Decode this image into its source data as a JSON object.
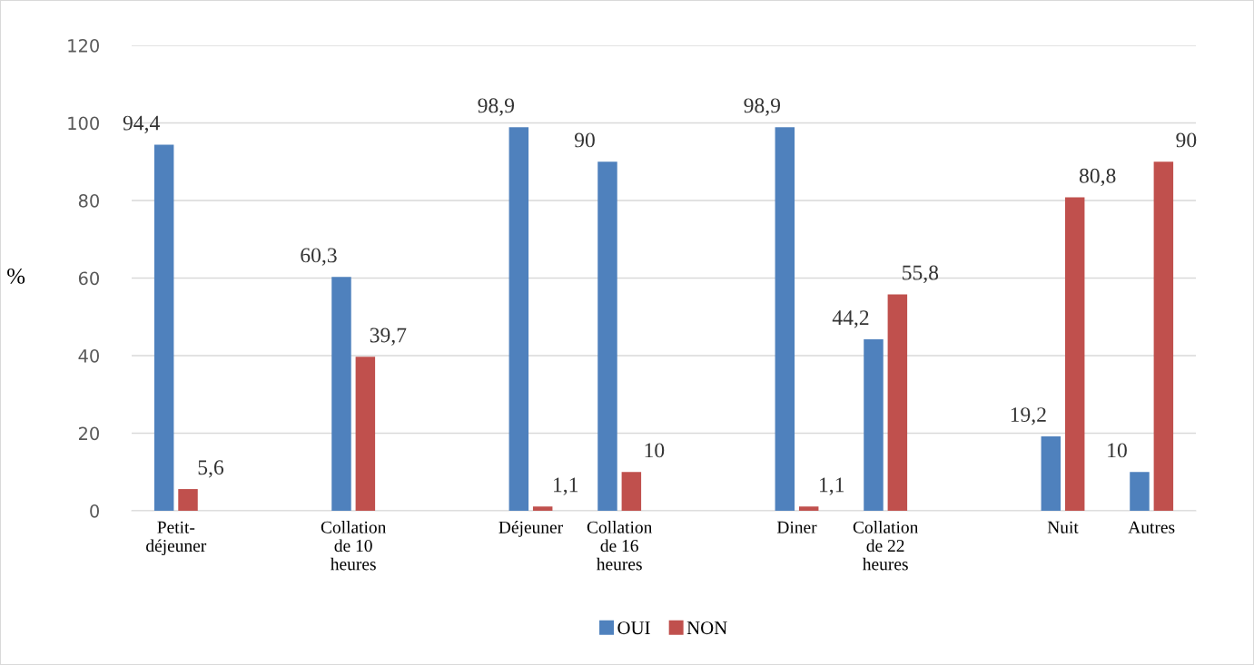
{
  "chart_data": {
    "type": "bar",
    "ylabel": "%",
    "categories": [
      "Petit-\ndéjeuner",
      null,
      "Collation\nde 10\nheures",
      null,
      "Déjeuner",
      "Collation\nde 16\nheures",
      null,
      "Diner",
      "Collation\nde 22\nheures",
      null,
      "Nuit",
      "Autres"
    ],
    "series": [
      {
        "name": "OUI",
        "color": "#4f81bd",
        "values": [
          94.4,
          null,
          60.3,
          null,
          98.9,
          90,
          null,
          98.9,
          44.2,
          null,
          19.2,
          10
        ],
        "value_labels": [
          "94,4",
          null,
          "60,3",
          null,
          "98,9",
          "90",
          null,
          "98,9",
          "44,2",
          null,
          "19,2",
          "10"
        ]
      },
      {
        "name": "NON",
        "color": "#c0504d",
        "values": [
          5.6,
          null,
          39.7,
          null,
          1.1,
          10,
          null,
          1.1,
          55.8,
          null,
          80.8,
          90
        ],
        "value_labels": [
          "5,6",
          null,
          "39,7",
          null,
          "1,1",
          "10",
          null,
          "1,1",
          "55,8",
          null,
          "80,8",
          "90"
        ]
      }
    ],
    "ylim": [
      0,
      120
    ],
    "yticks": [
      0,
      20,
      40,
      60,
      80,
      100,
      120
    ],
    "grid": "y",
    "legend": "bottom"
  }
}
